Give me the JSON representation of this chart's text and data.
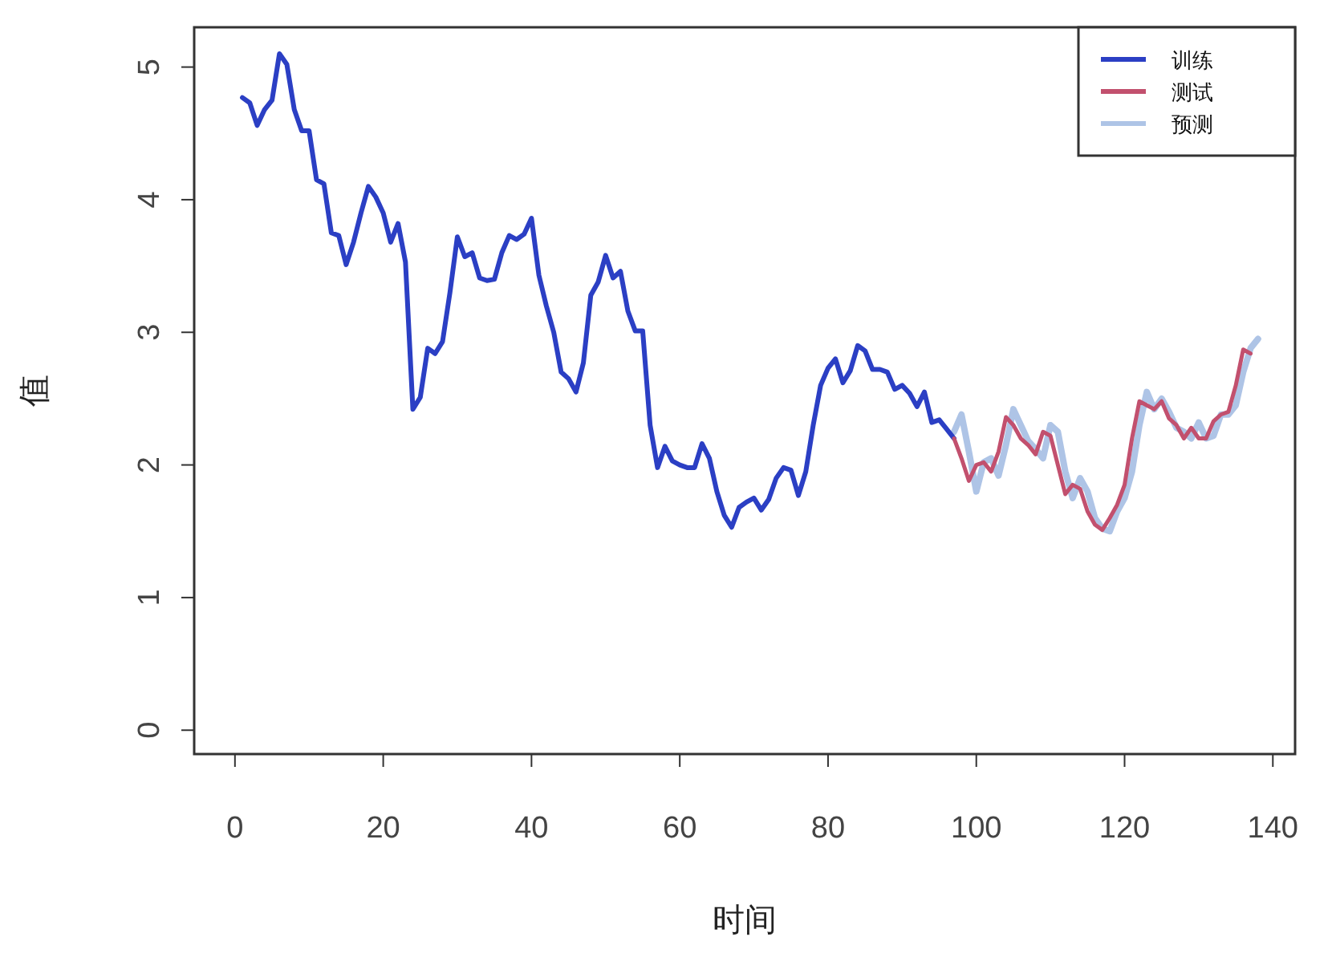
{
  "chart_data": {
    "type": "line",
    "xlabel": "时间",
    "ylabel": "值",
    "xlim": [
      -5.5,
      143
    ],
    "xticks": [
      0,
      20,
      40,
      60,
      80,
      100,
      120,
      140
    ],
    "ylim": [
      -0.18,
      5.3
    ],
    "yticks": [
      0,
      1,
      2,
      3,
      4,
      5
    ],
    "legend": "top right",
    "grid": false,
    "line_style": "solid",
    "marker": "none",
    "series": [
      {
        "name": "训练",
        "color": "#2b3fc4",
        "x": [
          1,
          2,
          3,
          4,
          5,
          6,
          7,
          8,
          9,
          10,
          11,
          12,
          13,
          14,
          15,
          16,
          17,
          18,
          19,
          20,
          21,
          22,
          23,
          24,
          25,
          26,
          27,
          28,
          29,
          30,
          31,
          32,
          33,
          34,
          35,
          36,
          37,
          38,
          39,
          40,
          41,
          42,
          43,
          44,
          45,
          46,
          47,
          48,
          49,
          50,
          51,
          52,
          53,
          54,
          55,
          56,
          57,
          58,
          59,
          60,
          61,
          62,
          63,
          64,
          65,
          66,
          67,
          68,
          69,
          70,
          71,
          72,
          73,
          74,
          75,
          76,
          77,
          78,
          79,
          80,
          81,
          82,
          83,
          84,
          85,
          86,
          87,
          88,
          89,
          90,
          91,
          92,
          93,
          94,
          95,
          96,
          97
        ],
        "values": [
          4.77,
          4.73,
          4.56,
          4.68,
          4.75,
          5.1,
          5.02,
          4.68,
          4.52,
          4.52,
          4.15,
          4.12,
          3.75,
          3.73,
          3.51,
          3.68,
          3.9,
          4.1,
          4.02,
          3.9,
          3.68,
          3.82,
          3.53,
          2.42,
          2.51,
          2.88,
          2.84,
          2.93,
          3.3,
          3.72,
          3.57,
          3.6,
          3.41,
          3.39,
          3.4,
          3.6,
          3.73,
          3.7,
          3.74,
          3.86,
          3.43,
          3.2,
          3.0,
          2.7,
          2.65,
          2.55,
          2.77,
          3.28,
          3.38,
          3.58,
          3.41,
          3.46,
          3.16,
          3.01,
          3.01,
          2.3,
          1.98,
          2.14,
          2.03,
          2.0,
          1.98,
          1.98,
          2.16,
          2.05,
          1.8,
          1.62,
          1.53,
          1.68,
          1.72,
          1.75,
          1.66,
          1.74,
          1.9,
          1.98,
          1.96,
          1.77,
          1.95,
          2.3,
          2.6,
          2.73,
          2.8,
          2.62,
          2.71,
          2.9,
          2.86,
          2.72,
          2.72,
          2.7,
          2.57,
          2.6,
          2.54,
          2.44,
          2.55,
          2.32,
          2.34,
          2.27,
          2.2
        ]
      },
      {
        "name": "测试",
        "color": "#c2506e",
        "x": [
          97,
          98,
          99,
          100,
          101,
          102,
          103,
          104,
          105,
          106,
          107,
          108,
          109,
          110,
          111,
          112,
          113,
          114,
          115,
          116,
          117,
          118,
          119,
          120,
          121,
          122,
          123,
          124,
          125,
          126,
          127,
          128,
          129,
          130,
          131,
          132,
          133,
          134,
          135,
          136,
          137
        ],
        "values": [
          2.2,
          2.05,
          1.88,
          2.0,
          2.02,
          1.95,
          2.1,
          2.36,
          2.3,
          2.2,
          2.15,
          2.08,
          2.25,
          2.22,
          2.0,
          1.78,
          1.85,
          1.82,
          1.65,
          1.55,
          1.51,
          1.6,
          1.7,
          1.85,
          2.2,
          2.48,
          2.45,
          2.42,
          2.48,
          2.35,
          2.3,
          2.2,
          2.28,
          2.2,
          2.2,
          2.33,
          2.38,
          2.4,
          2.6,
          2.87,
          2.84
        ]
      },
      {
        "name": "预测",
        "color": "#aec4e6",
        "x": [
          97,
          98,
          99,
          100,
          101,
          102,
          103,
          104,
          105,
          106,
          107,
          108,
          109,
          110,
          111,
          112,
          113,
          114,
          115,
          116,
          117,
          118,
          119,
          120,
          121,
          122,
          123,
          124,
          125,
          126,
          127,
          128,
          129,
          130,
          131,
          132,
          133,
          134,
          135,
          136,
          137,
          138
        ],
        "values": [
          2.25,
          2.38,
          2.1,
          1.8,
          2.02,
          2.05,
          1.92,
          2.15,
          2.42,
          2.3,
          2.18,
          2.12,
          2.05,
          2.3,
          2.25,
          1.95,
          1.75,
          1.9,
          1.8,
          1.6,
          1.52,
          1.5,
          1.65,
          1.75,
          1.95,
          2.3,
          2.55,
          2.42,
          2.5,
          2.4,
          2.28,
          2.25,
          2.2,
          2.32,
          2.2,
          2.22,
          2.38,
          2.38,
          2.45,
          2.7,
          2.88,
          2.95
        ]
      }
    ]
  }
}
